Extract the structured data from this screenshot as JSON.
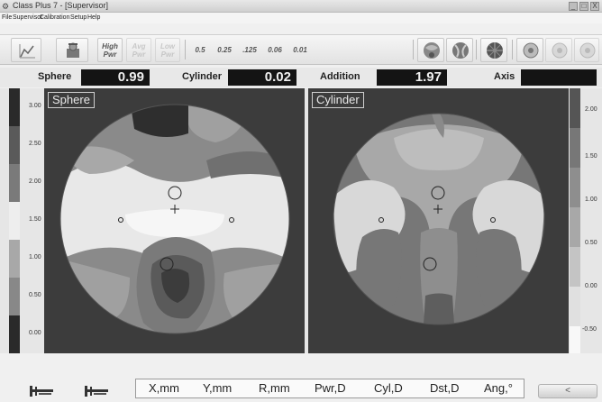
{
  "window": {
    "title": "Class Plus 7 - [Supervisor]",
    "controls": [
      "_",
      "□",
      "X"
    ]
  },
  "menu": [
    "File",
    "Supervisor",
    "Calibration",
    "Setup",
    "Help"
  ],
  "toolbar": {
    "power_buttons": [
      {
        "top": "High",
        "bottom": "Pwr"
      },
      {
        "top": "Avg",
        "bottom": "Pwr"
      },
      {
        "top": "Low",
        "bottom": "Pwr"
      }
    ],
    "resolution": [
      "0.5",
      "0.25",
      ".125",
      "0.06",
      "0.01"
    ]
  },
  "readout": {
    "sphere_label": "Sphere",
    "sphere_value": "0.99",
    "cylinder_label": "Cylinder",
    "cylinder_value": "0.02",
    "addition_label": "Addition",
    "addition_value": "1.97",
    "axis_label": "Axis",
    "axis_value": ""
  },
  "left_scale": [
    "3.00",
    "2.50",
    "2.00",
    "1.50",
    "1.00",
    "0.50",
    "0.00"
  ],
  "right_scale": [
    "2.00",
    "1.50",
    "1.00",
    "0.50",
    "0.00",
    "-0.50"
  ],
  "scale_colors": [
    "#2a2a2a",
    "#555555",
    "#6e6e6e",
    "#8a8a8a",
    "#a8a8a8",
    "#c8c8c8",
    "#e8e8e8",
    "#f8f8f8"
  ],
  "maps": {
    "sphere_title": "Sphere",
    "cylinder_title": "Cylinder"
  },
  "columns": [
    "X,mm",
    "Y,mm",
    "R,mm",
    "Pwr,D",
    "Cyl,D",
    "Dst,D",
    "Ang,°"
  ],
  "nav": "<"
}
